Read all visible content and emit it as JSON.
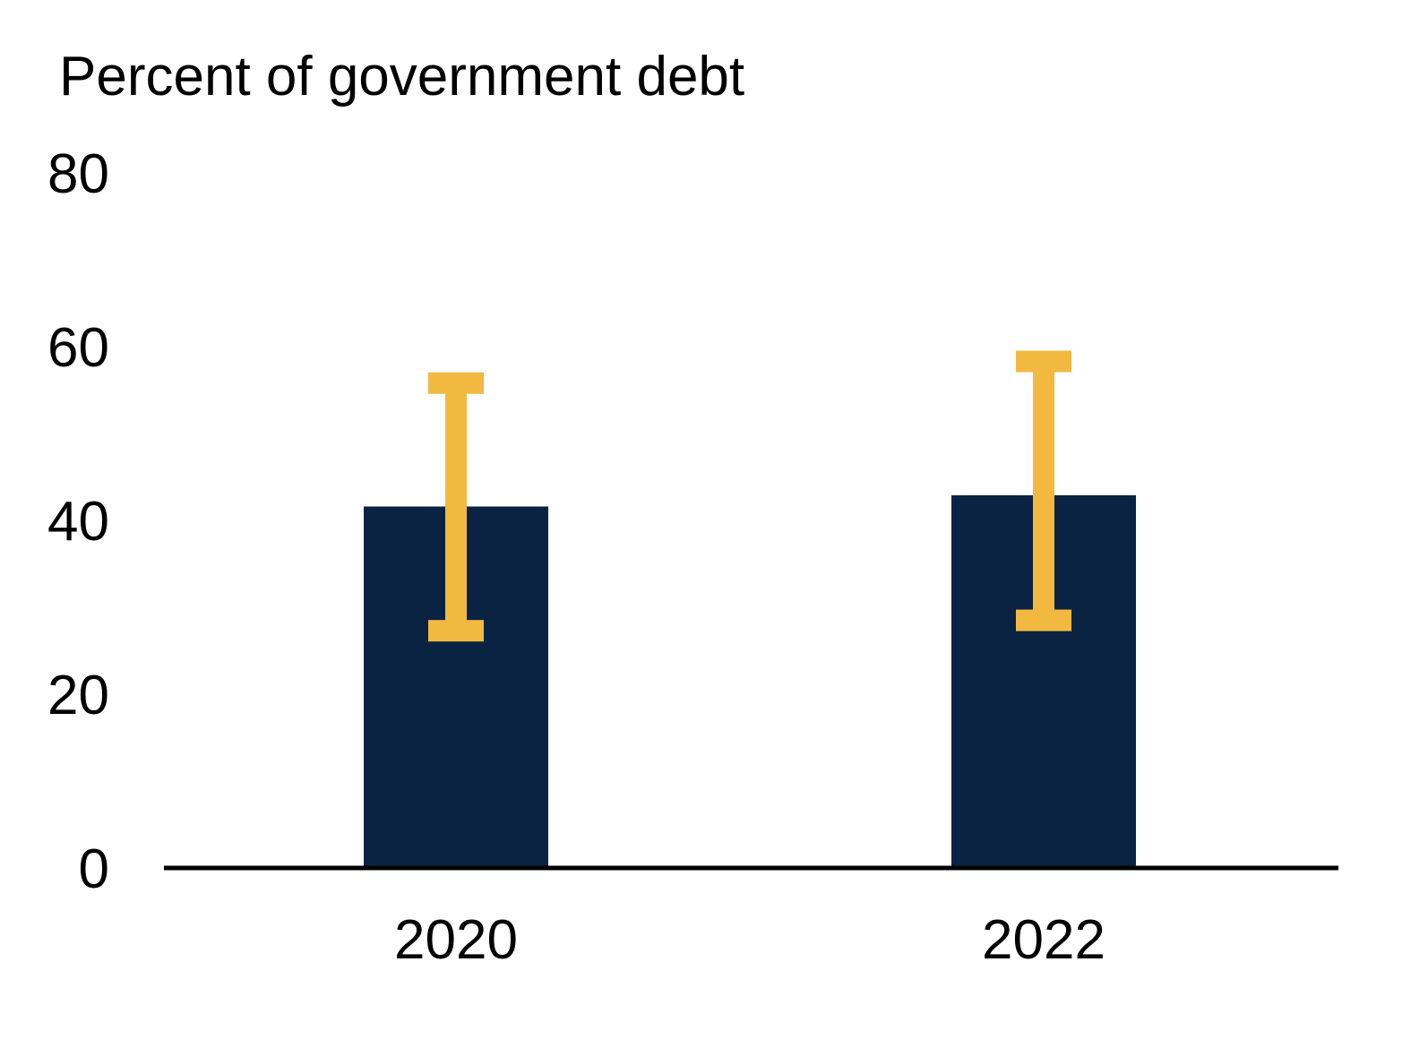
{
  "chart_data": {
    "type": "bar",
    "title": "",
    "xlabel": "",
    "ylabel": "Percent of government debt",
    "categories": [
      "2020",
      "2022"
    ],
    "values": [
      41.6,
      42.9
    ],
    "error_bars": [
      {
        "low": 27.3,
        "high": 55.8
      },
      {
        "low": 28.5,
        "high": 58.3
      }
    ],
    "ylim": [
      0,
      80
    ],
    "yticks": [
      0,
      20,
      40,
      60,
      80
    ],
    "grid": false,
    "legend": "none",
    "colors": {
      "bar": "#0b2343",
      "error_bar": "#f2b941",
      "axis": "#000000"
    }
  }
}
